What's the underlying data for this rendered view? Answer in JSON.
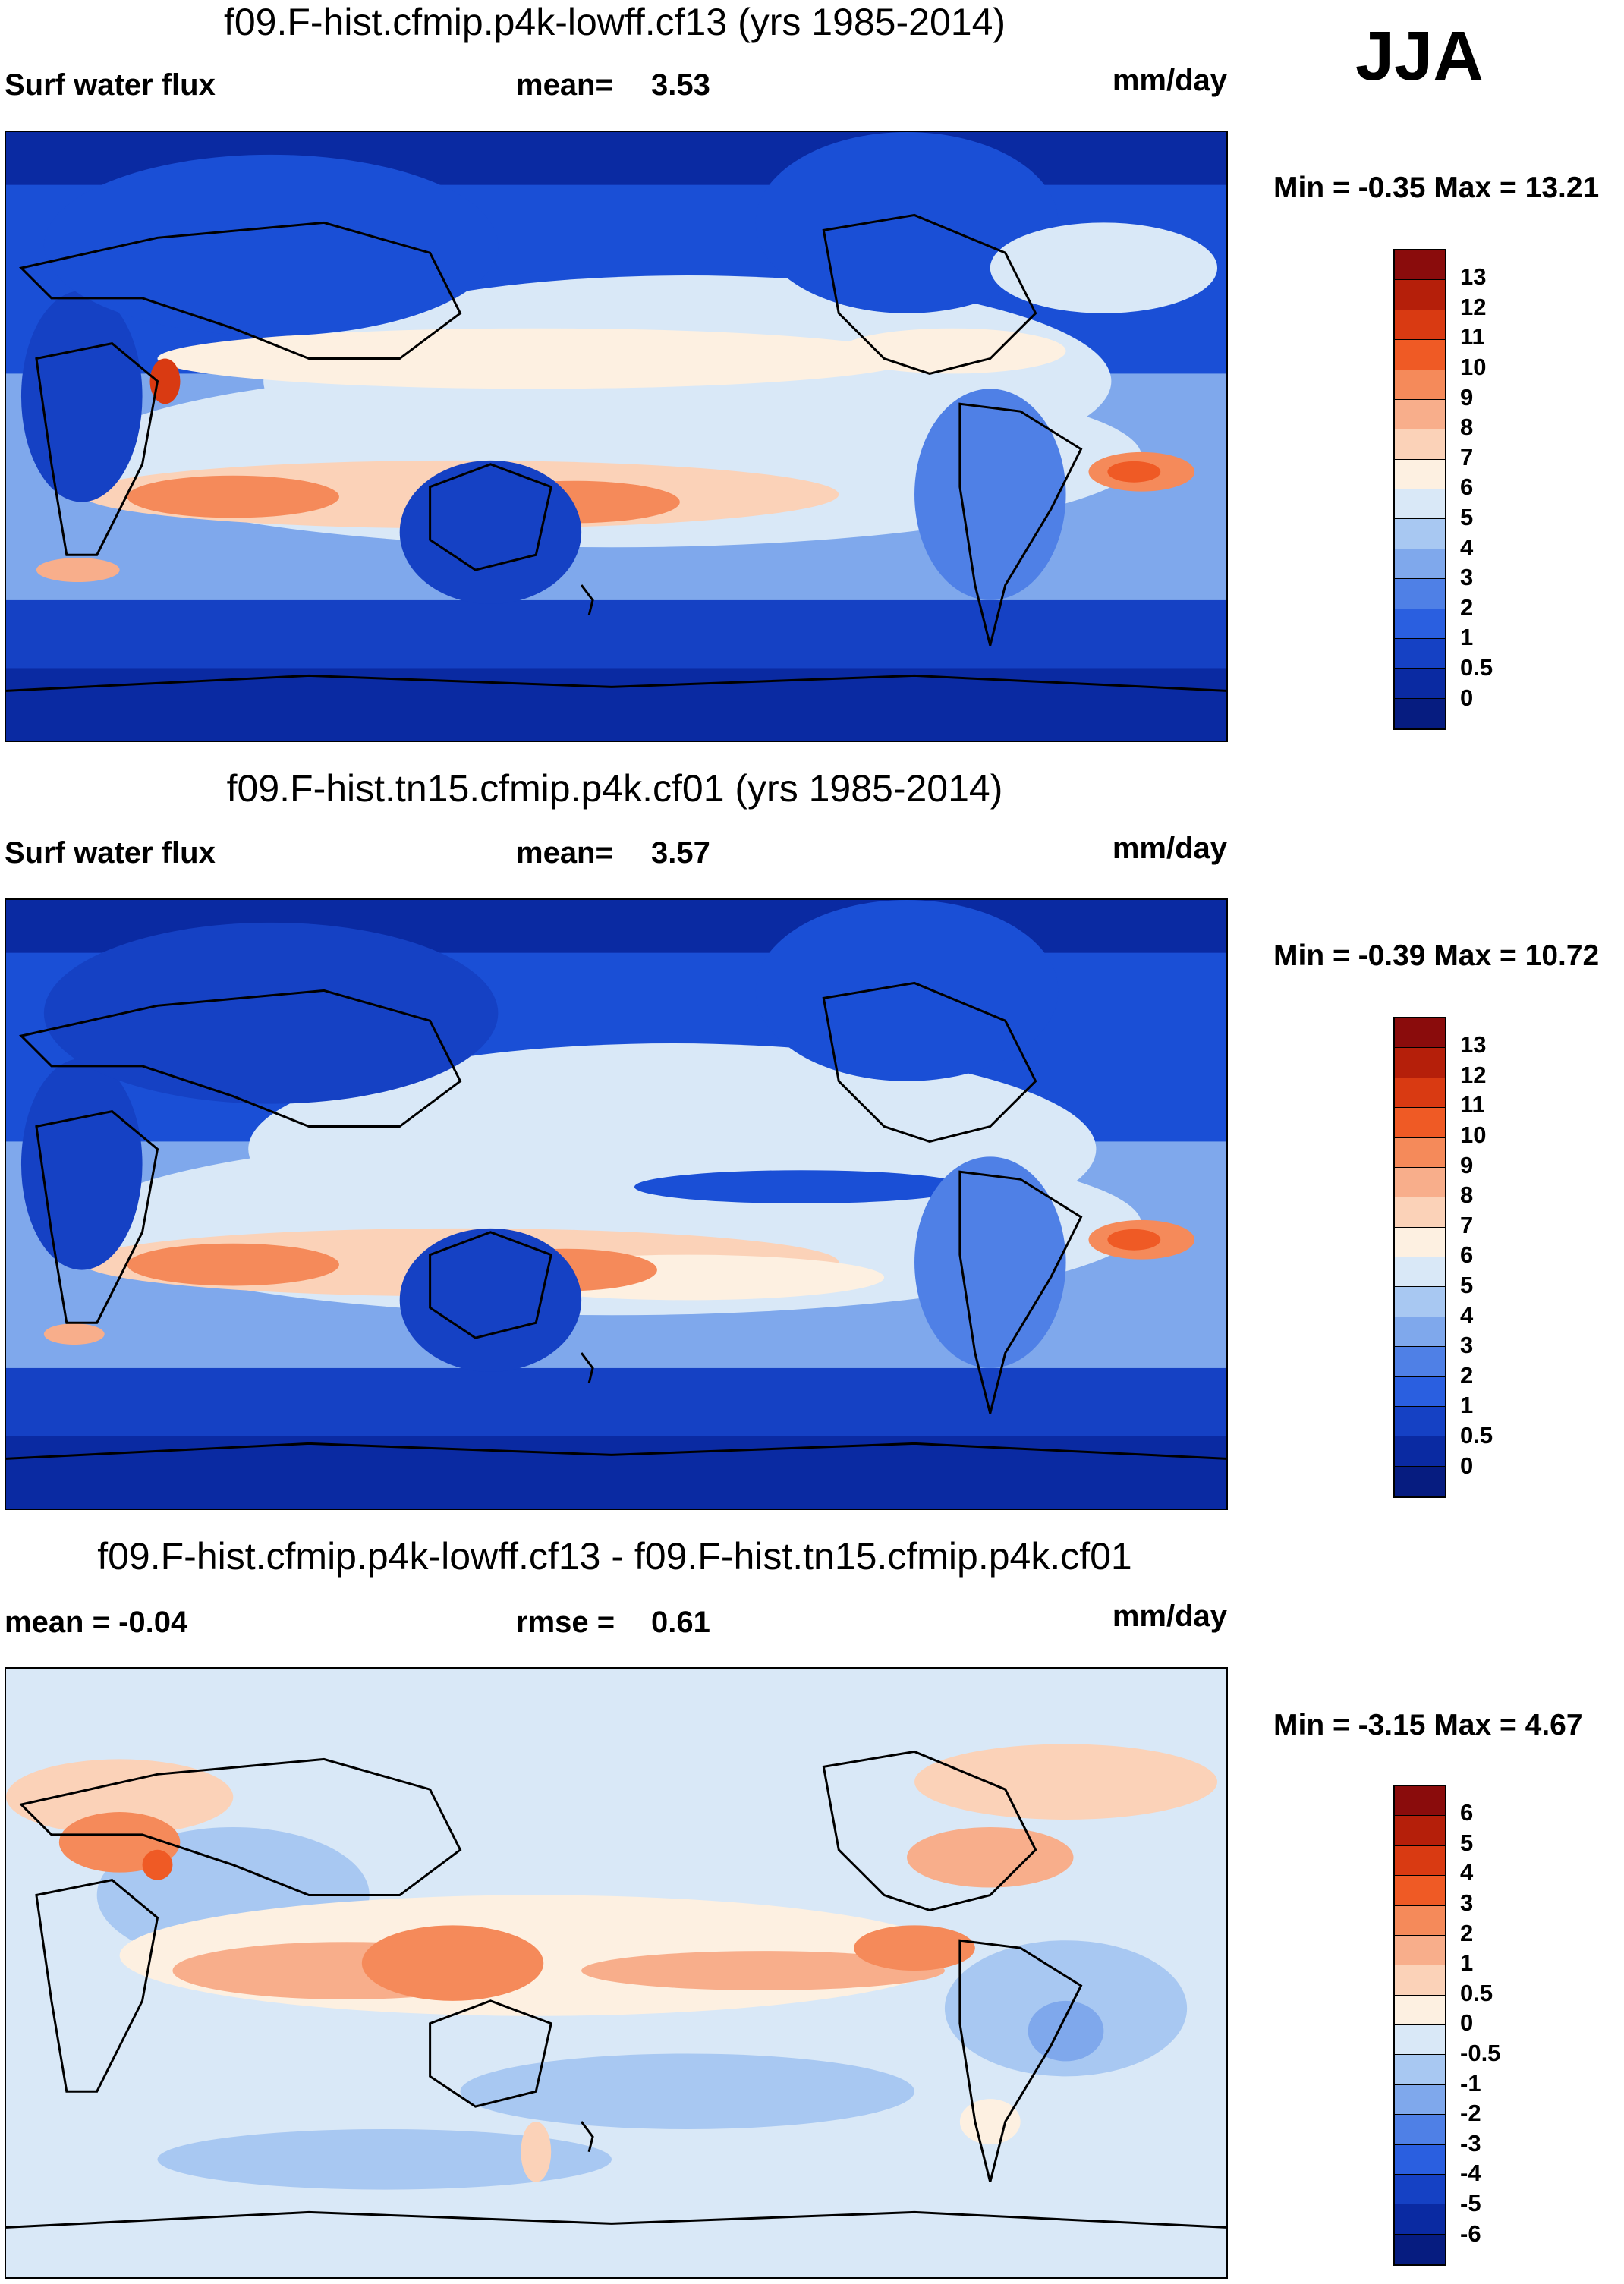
{
  "season": "JJA",
  "units": "mm/day",
  "panels": [
    {
      "title": "f09.F-hist.cfmip.p4k-lowff.cf13 (yrs 1985-2014)",
      "left_label": "Surf water flux",
      "stat_label": "mean=",
      "stat_value": "3.53",
      "units": "mm/day",
      "min_max": "Min =  -0.35 Max =  13.21",
      "scheme": "full"
    },
    {
      "title": "f09.F-hist.tn15.cfmip.p4k.cf01 (yrs 1985-2014)",
      "left_label": "Surf water flux",
      "stat_label": "mean=",
      "stat_value": "3.57",
      "units": "mm/day",
      "min_max": "Min =  -0.39 Max =  10.72",
      "scheme": "full"
    },
    {
      "title": "f09.F-hist.cfmip.p4k-lowff.cf13 - f09.F-hist.tn15.cfmip.p4k.cf01",
      "left_label": "mean =  -0.04",
      "stat_label": "rmse =",
      "stat_value": "0.61",
      "units": "mm/day",
      "min_max": "Min =  -3.15 Max =   4.67",
      "scheme": "diff"
    }
  ],
  "colorbars": {
    "full": {
      "levels": [
        "13",
        "12",
        "11",
        "10",
        "9",
        "8",
        "7",
        "6",
        "5",
        "4",
        "3",
        "2",
        "1",
        "0.5",
        "0"
      ],
      "colors": [
        "#8a0c0c",
        "#b51f0a",
        "#d93a12",
        "#ef5a25",
        "#f58a5a",
        "#f8ae8b",
        "#fbd2b8",
        "#fdf0e1",
        "#d9e8f7",
        "#a8c8f2",
        "#7fa8ec",
        "#4f80e6",
        "#2a5fe0",
        "#1541c4",
        "#0a2aa2",
        "#061c80"
      ]
    },
    "diff": {
      "levels": [
        "6",
        "5",
        "4",
        "3",
        "2",
        "1",
        "0.5",
        "0",
        "-0.5",
        "-1",
        "-2",
        "-3",
        "-4",
        "-5",
        "-6"
      ],
      "colors": [
        "#8a0c0c",
        "#b51f0a",
        "#d93a12",
        "#ef5a25",
        "#f58a5a",
        "#f8ae8b",
        "#fbd2b8",
        "#fdf0e1",
        "#d9e8f7",
        "#a8c8f2",
        "#7fa8ec",
        "#4f80e6",
        "#2a5fe0",
        "#1541c4",
        "#0a2aa2",
        "#061c80"
      ]
    }
  }
}
